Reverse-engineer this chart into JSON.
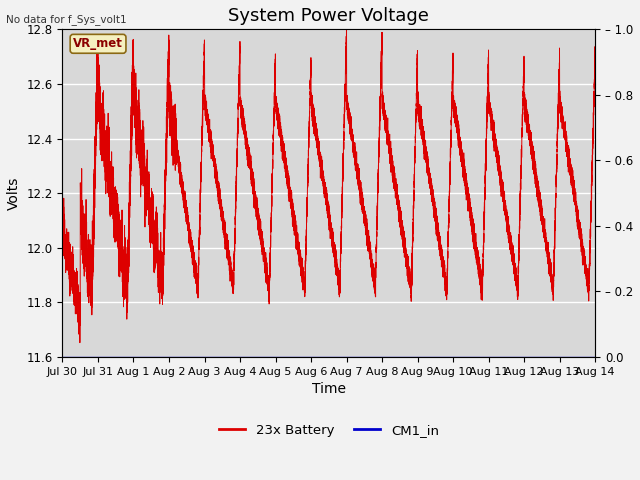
{
  "title": "System Power Voltage",
  "xlabel": "Time",
  "ylabel": "Volts",
  "ylim_left": [
    11.6,
    12.8
  ],
  "ylim_right": [
    0.0,
    1.0
  ],
  "no_data_text": "No data for f_Sys_volt1",
  "vr_met_label": "VR_met",
  "xtick_labels": [
    "Jul 30",
    "Jul 31",
    "Aug 1",
    "Aug 2",
    "Aug 3",
    "Aug 4",
    "Aug 5",
    "Aug 6",
    "Aug 7",
    "Aug 8",
    "Aug 9",
    "Aug 10",
    "Aug 11",
    "Aug 12",
    "Aug 13",
    "Aug 14"
  ],
  "battery_color": "#dd0000",
  "cm1_color": "#0000cc",
  "plot_bg_color": "#d8d8d8",
  "fig_bg_color": "#f2f2f2",
  "legend_entries": [
    "23x Battery",
    "CM1_in"
  ],
  "title_fontsize": 13,
  "axis_fontsize": 10,
  "tick_fontsize": 8.5,
  "right_tick_labels": [
    "0.0",
    "0.2",
    "0.4",
    "0.6",
    "0.8",
    "1.0"
  ],
  "right_ticks": [
    0.0,
    0.2,
    0.4,
    0.6,
    0.8,
    1.0
  ],
  "left_ticks": [
    11.6,
    11.8,
    12.0,
    12.2,
    12.4,
    12.6,
    12.8
  ]
}
